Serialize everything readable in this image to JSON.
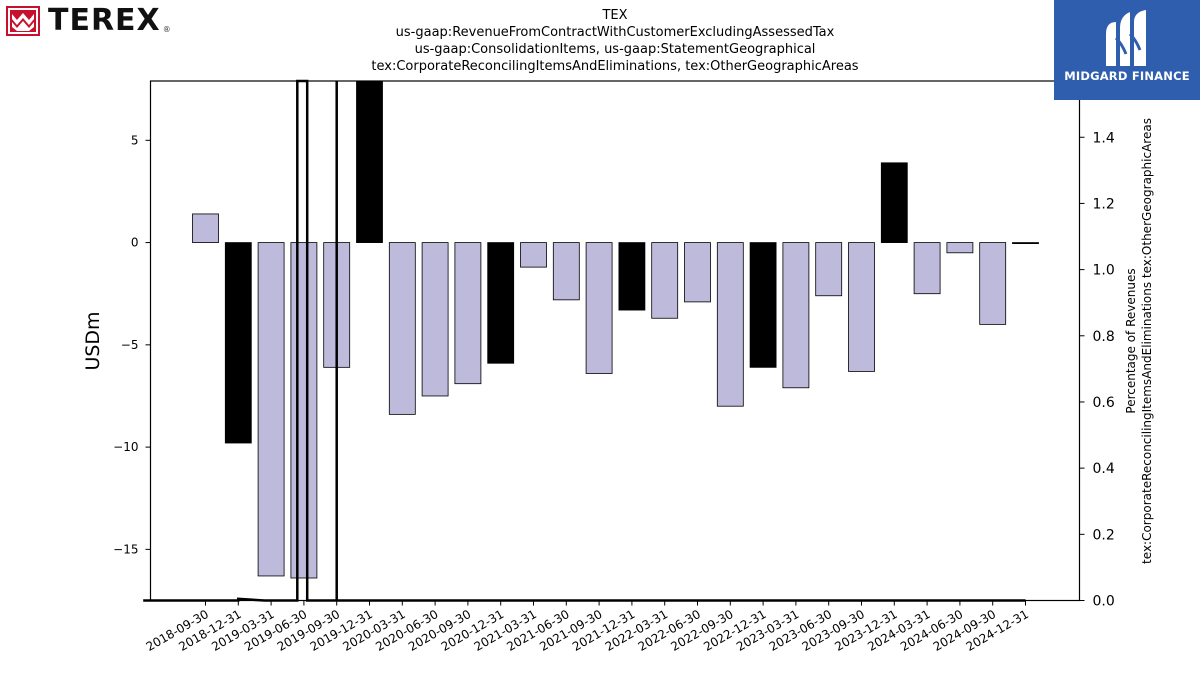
{
  "header": {
    "title_lines": [
      "TEX",
      "us-gaap:RevenueFromContractWithCustomerExcludingAssessedTax",
      "us-gaap:ConsolidationItems, us-gaap:StatementGeographical",
      "tex:CorporateReconcilingItemsAndEliminations, tex:OtherGeographicAreas"
    ]
  },
  "logos": {
    "left": {
      "text": "TEREX",
      "reg": "®",
      "icon": "terex-crown-icon",
      "color": "#c8102e"
    },
    "right": {
      "text": "MIDGARD FINANCE",
      "icon": "midgard-m-icon",
      "background": "#2f5eae"
    }
  },
  "chart_data": {
    "type": "bar",
    "categories": [
      "2018-09-30",
      "2018-12-31",
      "2019-03-31",
      "2019-06-30",
      "2019-09-30",
      "2019-12-31",
      "2020-03-31",
      "2020-06-30",
      "2020-09-30",
      "2020-12-31",
      "2021-03-31",
      "2021-06-30",
      "2021-09-30",
      "2021-12-31",
      "2022-03-31",
      "2022-06-30",
      "2022-09-30",
      "2022-12-31",
      "2023-03-31",
      "2023-06-30",
      "2023-09-30",
      "2023-12-31",
      "2024-03-31",
      "2024-06-30",
      "2024-09-30",
      "2024-12-31"
    ],
    "values": [
      1.4,
      -9.8,
      -16.3,
      -16.4,
      -6.1,
      8.0,
      -8.4,
      -7.5,
      -6.9,
      -5.9,
      -1.2,
      -2.8,
      -6.4,
      -3.3,
      -3.7,
      -2.9,
      -8.0,
      -6.1,
      -7.1,
      -2.6,
      -6.3,
      3.9,
      -2.5,
      -0.5,
      -4.0,
      -0.05
    ],
    "highlight": [
      false,
      true,
      false,
      false,
      false,
      true,
      false,
      false,
      false,
      true,
      false,
      false,
      false,
      true,
      false,
      false,
      false,
      true,
      false,
      false,
      false,
      true,
      false,
      false,
      false,
      true
    ],
    "colors": {
      "normal": "#bebadb",
      "highlight": "#000000"
    },
    "ylabel": "USDm",
    "ylim": [
      -17.5,
      7.9
    ],
    "yticks": [
      5,
      0,
      -5,
      -10,
      -15
    ],
    "ytick_labels": [
      "5",
      "0",
      "−5",
      "−10",
      "−15"
    ],
    "y2label_lines": [
      "Percentage of Revenues",
      "tex:CorporateReconcilingItemsAndEliminations tex:OtherGeographicAreas"
    ],
    "y2lim": [
      0.0,
      1.57
    ],
    "y2ticks": [
      0.0,
      0.2,
      0.4,
      0.6,
      0.8,
      1.0,
      1.2,
      1.4
    ],
    "y2tick_labels": [
      "0.0",
      "0.2",
      "0.4",
      "0.6",
      "0.8",
      "1.0",
      "1.2",
      "1.4"
    ],
    "percentage_line": [
      {
        "x": -1.9,
        "y": 0.0
      },
      {
        "x": 1.0,
        "y": 0.0
      },
      {
        "x": 1.0,
        "y": 0.005
      },
      {
        "x": 1.8,
        "y": 0.0
      },
      {
        "x": 2.8,
        "y": 0.0
      },
      {
        "x": 2.8,
        "y": 1.57
      },
      {
        "x": 3.1,
        "y": 1.57
      },
      {
        "x": 3.1,
        "y": 0.0
      },
      {
        "x": 4.0,
        "y": 0.0
      },
      {
        "x": 4.0,
        "y": 1.57
      },
      {
        "x": 4.0,
        "y": 0.0
      },
      {
        "x": 25.0,
        "y": 0.0
      }
    ],
    "grid": false,
    "legend": "none"
  }
}
